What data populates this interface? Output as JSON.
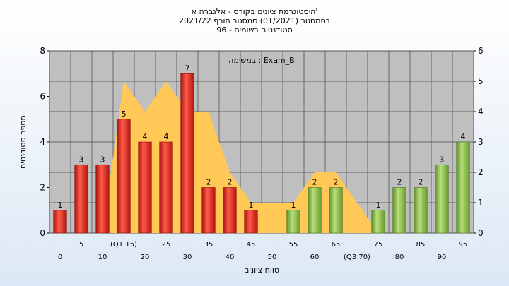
{
  "chart_data": {
    "type": "bar",
    "title": [
      "היסטוגרמת ציונים בקורס - אלגברה א'",
      "בסמסטר  (01/2021)  סמסטר חורף  2021/22",
      "סטודנטים רשומים - 96"
    ],
    "legend_text": "במשימה : Exam_B",
    "xlabel": "טווח ציונים",
    "ylabel": "מספר סטודנטים",
    "ylim_left": [
      0,
      8
    ],
    "ylim_right": [
      0,
      6
    ],
    "yticks_left": [
      "0",
      "2",
      "4",
      "6",
      "8"
    ],
    "yticks_right": [
      "0",
      "1",
      "2",
      "3",
      "4",
      "5",
      "6"
    ],
    "categories": [
      "0",
      "5",
      "10",
      "15",
      "20",
      "25",
      "30",
      "35",
      "40",
      "45",
      "50",
      "55",
      "60",
      "65",
      "70",
      "75",
      "80",
      "85",
      "90",
      "95"
    ],
    "x_tick_labels": [
      "0",
      "5",
      "10",
      "(Q1 15)",
      "20",
      "25",
      "30",
      "35",
      "40",
      "45",
      "50",
      "55",
      "60",
      "65",
      "(Q3 70)",
      "75",
      "80",
      "85",
      "90",
      "95"
    ],
    "series": [
      {
        "values": [
          1,
          3,
          3,
          5,
          4,
          4,
          7,
          2,
          2,
          1,
          0,
          1,
          2,
          2,
          0,
          1,
          2,
          2,
          3,
          4
        ],
        "bar_colors": [
          "red",
          "red",
          "red",
          "red",
          "red",
          "red",
          "red",
          "red",
          "red",
          "red",
          "none",
          "green",
          "green",
          "green",
          "none",
          "green",
          "green",
          "green",
          "green",
          "green"
        ]
      },
      {
        "type": "area",
        "axis": "right",
        "values": [
          0,
          0,
          0,
          5,
          4,
          5,
          4,
          4,
          2,
          1,
          1,
          1,
          2,
          2,
          1,
          0,
          0,
          0,
          0,
          0
        ]
      }
    ],
    "grid": true,
    "colors": {
      "red": "#e8332a",
      "green": "#93c34d",
      "area": "#ffc857",
      "plot_bg": "#bfbfbf"
    }
  }
}
